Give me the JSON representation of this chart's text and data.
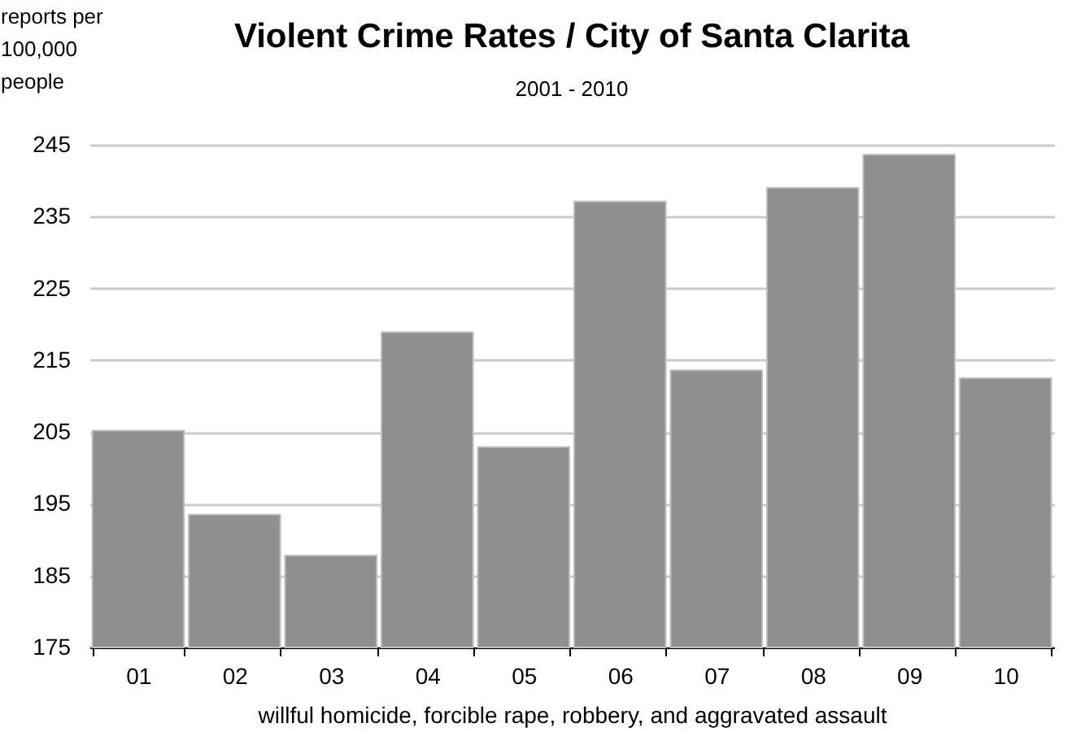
{
  "chart_data": {
    "type": "bar",
    "title": "Violent Crime Rates / City of Santa Clarita",
    "subtitle": "2001 - 2010",
    "xlabel": "willful homicide, forcible rape, robbery, and aggravated assault",
    "ylabel": "reports per 100,000 people",
    "categories": [
      "01",
      "02",
      "03",
      "04",
      "05",
      "06",
      "07",
      "08",
      "09",
      "10"
    ],
    "values": [
      205.2,
      193.5,
      187.8,
      218.9,
      202.9,
      237.1,
      213.6,
      239.0,
      243.6,
      212.5
    ],
    "color": "#8f8f8f",
    "ylim": [
      175,
      245
    ],
    "yticks": [
      175,
      185,
      195,
      205,
      215,
      225,
      235,
      245
    ],
    "grid": "y"
  }
}
